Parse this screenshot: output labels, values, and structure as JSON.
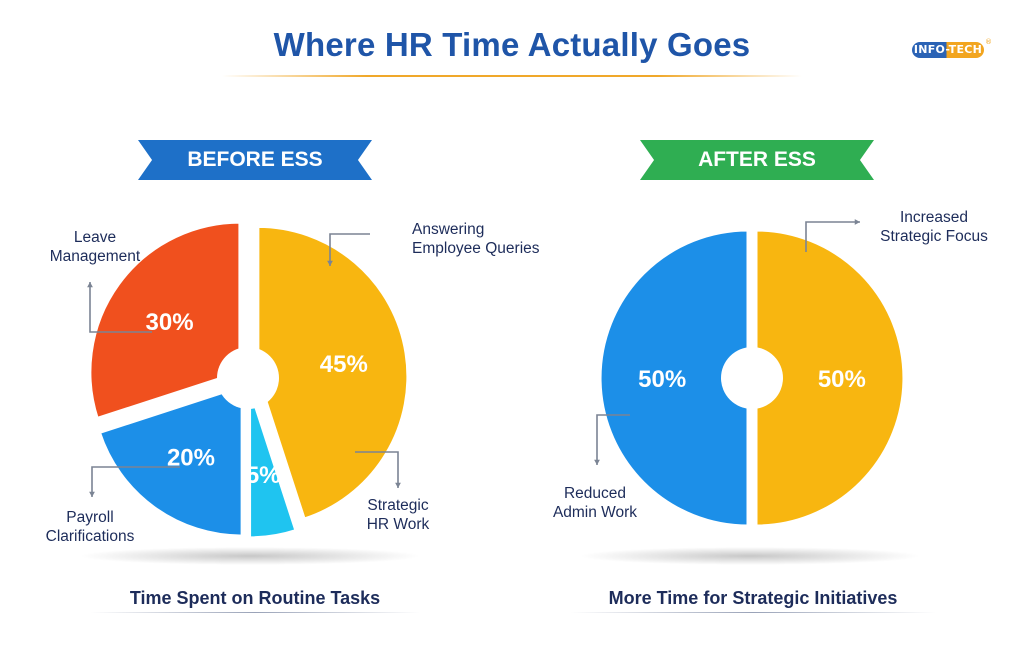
{
  "title": "Where HR Time Actually Goes",
  "logo": {
    "text": "INFO-TECH",
    "reg_mark": "®"
  },
  "colors": {
    "title": "#1f55a8",
    "before_ribbon": "#1e70c8",
    "after_ribbon": "#2fae52",
    "orange_red": "#f0501e",
    "yellow": "#f8b610",
    "blue": "#1c8fe8",
    "light_blue": "#1fc4f0"
  },
  "chart_data": [
    {
      "type": "pie",
      "title": "BEFORE ESS",
      "subtitle": "Time Spent on Routine Tasks",
      "slices": [
        {
          "label": "Answering Employee Queries",
          "value": 45,
          "display": "45%",
          "color": "#f8b610",
          "label_lines": [
            "Answering",
            "Employee Queries"
          ]
        },
        {
          "label": "Strategic HR Work",
          "value": 5,
          "display": "5%",
          "color": "#1fc4f0",
          "label_lines": [
            "Strategic",
            "HR Work"
          ]
        },
        {
          "label": "Payroll Clarifications",
          "value": 20,
          "display": "20%",
          "color": "#1c8fe8",
          "label_lines": [
            "Payroll",
            "Clarifications"
          ]
        },
        {
          "label": "Leave Management",
          "value": 30,
          "display": "30%",
          "color": "#f0501e",
          "label_lines": [
            "Leave",
            "Management"
          ]
        }
      ]
    },
    {
      "type": "pie",
      "title": "AFTER ESS",
      "subtitle": "More Time for Strategic Initiatives",
      "slices": [
        {
          "label": "Increased Strategic Focus",
          "value": 50,
          "display": "50%",
          "color": "#f8b610",
          "label_lines": [
            "Increased",
            "Strategic Focus"
          ]
        },
        {
          "label": "Reduced Admin Work",
          "value": 50,
          "display": "50%",
          "color": "#1c8fe8",
          "label_lines": [
            "Reduced",
            "Admin Work"
          ]
        }
      ]
    }
  ]
}
